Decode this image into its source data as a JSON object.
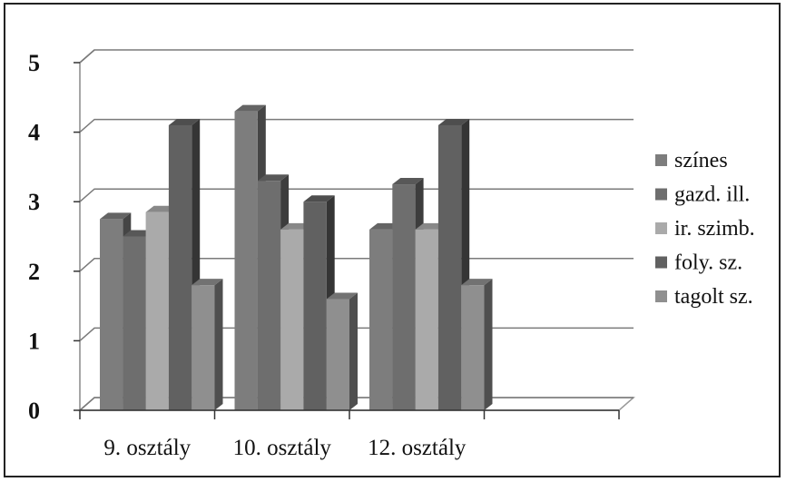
{
  "chart_data": {
    "type": "bar",
    "style": "3d-clustered-column",
    "categories": [
      "9. osztály",
      "10. osztály",
      "12. osztály",
      ""
    ],
    "series": [
      {
        "name": "színes",
        "values": [
          2.75,
          4.3,
          2.6,
          null
        ],
        "color": "#7d7d7d"
      },
      {
        "name": "gazd. ill.",
        "values": [
          2.5,
          3.3,
          3.25,
          null
        ],
        "color": "#6e6e6e"
      },
      {
        "name": "ir. szimb.",
        "values": [
          2.85,
          2.6,
          2.6,
          null
        ],
        "color": "#aaaaaa"
      },
      {
        "name": "foly. sz.",
        "values": [
          4.1,
          3.0,
          4.1,
          null
        ],
        "color": "#616161"
      },
      {
        "name": "tagolt sz.",
        "values": [
          1.8,
          1.6,
          1.8,
          null
        ],
        "color": "#8f8f8f"
      }
    ],
    "yticks": [
      0,
      1,
      2,
      3,
      4,
      5
    ],
    "ylim": [
      0,
      5
    ],
    "grid": true,
    "legend": "right"
  }
}
